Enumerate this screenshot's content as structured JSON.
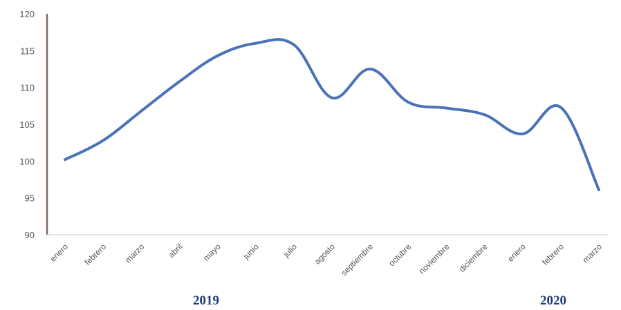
{
  "chart_data": {
    "type": "line",
    "title": "",
    "xlabel": "",
    "ylabel": "",
    "ylim": [
      90,
      120
    ],
    "yticks": [
      "90",
      "95",
      "100",
      "105",
      "110",
      "115",
      "120"
    ],
    "categories": [
      "enero",
      "febrero",
      "marzo",
      "abril",
      "mayo",
      "junio",
      "julio",
      "agosto",
      "septiembre",
      "octubre",
      "noviembre",
      "diciembre",
      "enero",
      "febrero",
      "marzo"
    ],
    "series": [
      {
        "values": [
          100.2,
          102.8,
          106.8,
          110.8,
          114.3,
          116.0,
          115.8,
          108.6,
          112.5,
          108.0,
          107.2,
          106.3,
          103.7,
          107.3,
          96.1
        ]
      }
    ],
    "group_labels": [
      {
        "label": "2019",
        "from": 0,
        "to": 11
      },
      {
        "label": "2020",
        "from": 12,
        "to": 14
      }
    ],
    "grid": false,
    "legend": "none",
    "colors": {
      "line": "#4a72b8",
      "axis": "#7a6a62",
      "tick_text": "#555555",
      "year_text": "#1f3b78"
    }
  }
}
